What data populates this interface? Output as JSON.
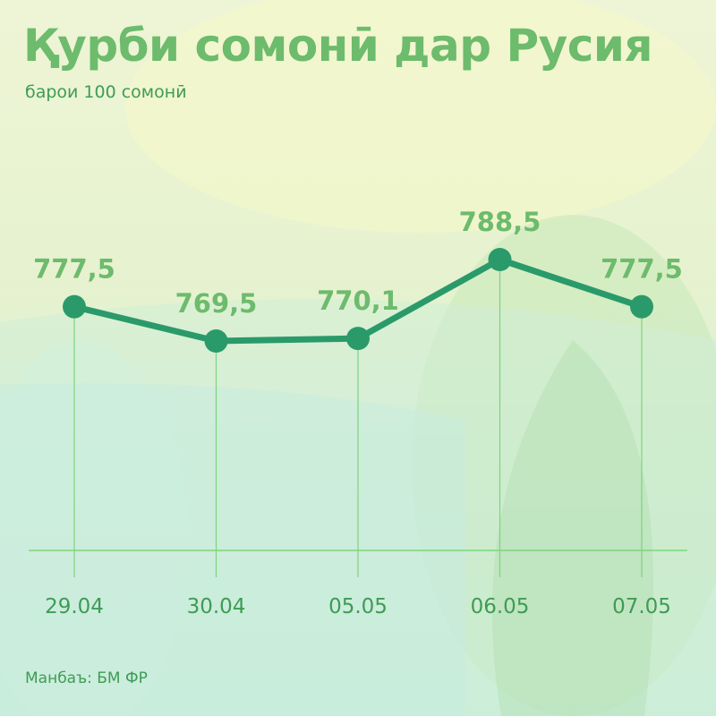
{
  "title": "Қурби сомонӣ дар Русия",
  "subtitle": "барои 100 сомонӣ",
  "source": "Манбаъ: БМ ФР",
  "colors": {
    "line": "#2a9a6a",
    "label": "#6dbb6c",
    "tick": "#3e9c54",
    "guide": "#7fd37f"
  },
  "chart_data": {
    "type": "line",
    "categories": [
      "29.04",
      "30.04",
      "05.05",
      "06.05",
      "07.05"
    ],
    "values": [
      777.5,
      769.5,
      770.1,
      788.5,
      777.5
    ],
    "data_labels": [
      "777,5",
      "769,5",
      "770,1",
      "788,5",
      "777,5"
    ],
    "title": "Қурби сомонӣ дар Русия",
    "subtitle": "барои 100 сомонӣ",
    "grid": false
  }
}
